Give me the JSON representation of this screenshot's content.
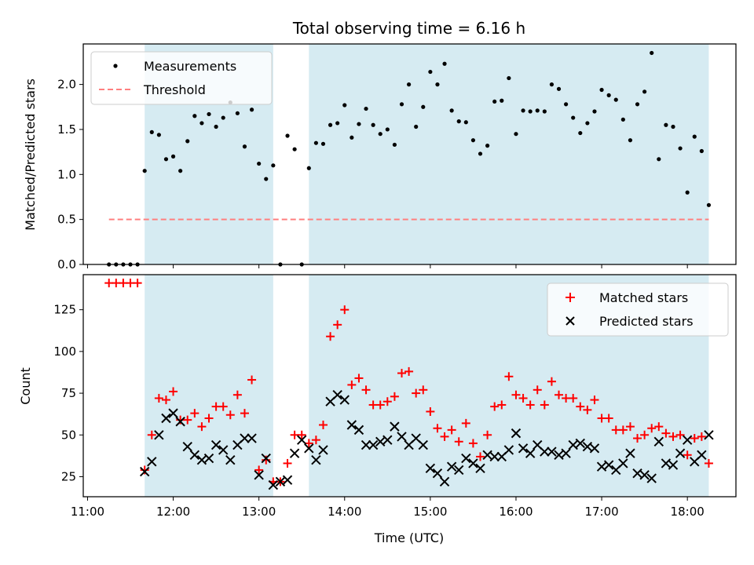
{
  "chart_data": [
    {
      "type": "scatter",
      "title": "Total observing time = 6.16 h",
      "xlabel": "",
      "ylabel": "Matched/Predicted stars",
      "xlim": [
        "10:57",
        "18:34"
      ],
      "ylim": [
        0,
        2.45
      ],
      "x_ticks": [
        "11:00",
        "12:00",
        "13:00",
        "14:00",
        "15:00",
        "16:00",
        "17:00",
        "18:00"
      ],
      "x_tick_labels_visible": false,
      "y_ticks": [
        0.0,
        0.5,
        1.0,
        1.5,
        2.0
      ],
      "y_tick_labels": [
        "0.0",
        "0.5",
        "1.0",
        "1.5",
        "2.0"
      ],
      "grid": false,
      "legend_position": "upper left",
      "shaded_spans": [
        [
          "11:40",
          "13:10"
        ],
        [
          "13:35",
          "18:15"
        ]
      ],
      "threshold": {
        "name": "Threshold",
        "y": 0.5,
        "x_start": "11:15",
        "x_end": "18:15",
        "color": "#ff7f7f",
        "style": "dashed"
      },
      "series": [
        {
          "name": "Measurements",
          "color": "#000000",
          "marker": "dot",
          "points": [
            [
              "11:15",
              0
            ],
            [
              "11:20",
              0
            ],
            [
              "11:25",
              0
            ],
            [
              "11:30",
              0
            ],
            [
              "11:35",
              0
            ],
            [
              "11:40",
              1.04
            ],
            [
              "11:45",
              1.47
            ],
            [
              "11:50",
              1.44
            ],
            [
              "11:55",
              1.17
            ],
            [
              "12:00",
              1.2
            ],
            [
              "12:05",
              1.04
            ],
            [
              "12:10",
              1.37
            ],
            [
              "12:15",
              1.65
            ],
            [
              "12:20",
              1.57
            ],
            [
              "12:25",
              1.67
            ],
            [
              "12:30",
              1.53
            ],
            [
              "12:35",
              1.63
            ],
            [
              "12:40",
              1.8
            ],
            [
              "12:45",
              1.68
            ],
            [
              "12:50",
              1.31
            ],
            [
              "12:55",
              1.72
            ],
            [
              "13:00",
              1.12
            ],
            [
              "13:05",
              0.95
            ],
            [
              "13:10",
              1.1
            ],
            [
              "13:15",
              0
            ],
            [
              "13:20",
              1.43
            ],
            [
              "13:25",
              1.28
            ],
            [
              "13:30",
              0
            ],
            [
              "13:35",
              1.07
            ],
            [
              "13:40",
              1.35
            ],
            [
              "13:45",
              1.34
            ],
            [
              "13:50",
              1.55
            ],
            [
              "13:55",
              1.57
            ],
            [
              "14:00",
              1.77
            ],
            [
              "14:05",
              1.41
            ],
            [
              "14:10",
              1.56
            ],
            [
              "14:15",
              1.73
            ],
            [
              "14:20",
              1.55
            ],
            [
              "14:25",
              1.45
            ],
            [
              "14:30",
              1.5
            ],
            [
              "14:35",
              1.33
            ],
            [
              "14:40",
              1.78
            ],
            [
              "14:45",
              2.0
            ],
            [
              "14:50",
              1.53
            ],
            [
              "14:55",
              1.75
            ],
            [
              "15:00",
              2.14
            ],
            [
              "15:05",
              2.0
            ],
            [
              "15:10",
              2.23
            ],
            [
              "15:15",
              1.71
            ],
            [
              "15:20",
              1.59
            ],
            [
              "15:25",
              1.58
            ],
            [
              "15:30",
              1.38
            ],
            [
              "15:35",
              1.23
            ],
            [
              "15:40",
              1.32
            ],
            [
              "15:45",
              1.81
            ],
            [
              "15:50",
              1.82
            ],
            [
              "15:55",
              2.07
            ],
            [
              "16:00",
              1.45
            ],
            [
              "16:05",
              1.71
            ],
            [
              "16:10",
              1.7
            ],
            [
              "16:15",
              1.71
            ],
            [
              "16:20",
              1.7
            ],
            [
              "16:25",
              2.0
            ],
            [
              "16:30",
              1.95
            ],
            [
              "16:35",
              1.78
            ],
            [
              "16:40",
              1.63
            ],
            [
              "16:45",
              1.46
            ],
            [
              "16:50",
              1.57
            ],
            [
              "16:55",
              1.7
            ],
            [
              "17:00",
              1.94
            ],
            [
              "17:05",
              1.88
            ],
            [
              "17:10",
              1.83
            ],
            [
              "17:15",
              1.61
            ],
            [
              "17:20",
              1.38
            ],
            [
              "17:25",
              1.78
            ],
            [
              "17:30",
              1.92
            ],
            [
              "17:35",
              2.35
            ],
            [
              "17:40",
              1.17
            ],
            [
              "17:45",
              1.55
            ],
            [
              "17:50",
              1.53
            ],
            [
              "17:55",
              1.29
            ],
            [
              "18:00",
              0.8
            ],
            [
              "18:05",
              1.42
            ],
            [
              "18:10",
              1.26
            ],
            [
              "18:15",
              0.66
            ]
          ]
        }
      ]
    },
    {
      "type": "scatter",
      "title": "",
      "xlabel": "Time (UTC)",
      "ylabel": "Count",
      "xlim": [
        "10:57",
        "18:34"
      ],
      "ylim": [
        13,
        146
      ],
      "x_ticks": [
        "11:00",
        "12:00",
        "13:00",
        "14:00",
        "15:00",
        "16:00",
        "17:00",
        "18:00"
      ],
      "x_tick_labels": [
        "11:00",
        "12:00",
        "13:00",
        "14:00",
        "15:00",
        "16:00",
        "17:00",
        "18:00"
      ],
      "y_ticks": [
        25,
        50,
        75,
        100,
        125
      ],
      "y_tick_labels": [
        "25",
        "50",
        "75",
        "100",
        "125"
      ],
      "grid": false,
      "legend_position": "upper right",
      "shaded_spans": [
        [
          "11:40",
          "13:10"
        ],
        [
          "13:35",
          "18:15"
        ]
      ],
      "series": [
        {
          "name": "Matched stars",
          "color": "#ff0000",
          "marker": "plus",
          "points": [
            [
              "11:15",
              141
            ],
            [
              "11:20",
              141
            ],
            [
              "11:25",
              141
            ],
            [
              "11:30",
              141
            ],
            [
              "11:35",
              141
            ],
            [
              "11:40",
              29
            ],
            [
              "11:45",
              50
            ],
            [
              "11:50",
              72
            ],
            [
              "11:55",
              71
            ],
            [
              "12:00",
              76
            ],
            [
              "12:05",
              59
            ],
            [
              "12:10",
              59
            ],
            [
              "12:15",
              63
            ],
            [
              "12:20",
              55
            ],
            [
              "12:25",
              60
            ],
            [
              "12:30",
              67
            ],
            [
              "12:35",
              67
            ],
            [
              "12:40",
              62
            ],
            [
              "12:45",
              74
            ],
            [
              "12:50",
              63
            ],
            [
              "12:55",
              83
            ],
            [
              "13:00",
              29
            ],
            [
              "13:05",
              35
            ],
            [
              "13:10",
              22
            ],
            [
              "13:15",
              22
            ],
            [
              "13:20",
              33
            ],
            [
              "13:25",
              50
            ],
            [
              "13:30",
              50
            ],
            [
              "13:35",
              45
            ],
            [
              "13:40",
              47
            ],
            [
              "13:45",
              56
            ],
            [
              "13:50",
              109
            ],
            [
              "13:55",
              116
            ],
            [
              "14:00",
              125
            ],
            [
              "14:05",
              80
            ],
            [
              "14:10",
              84
            ],
            [
              "14:15",
              77
            ],
            [
              "14:20",
              68
            ],
            [
              "14:25",
              68
            ],
            [
              "14:30",
              70
            ],
            [
              "14:35",
              73
            ],
            [
              "14:40",
              87
            ],
            [
              "14:45",
              88
            ],
            [
              "14:50",
              75
            ],
            [
              "14:55",
              77
            ],
            [
              "15:00",
              64
            ],
            [
              "15:05",
              54
            ],
            [
              "15:10",
              49
            ],
            [
              "15:15",
              53
            ],
            [
              "15:20",
              46
            ],
            [
              "15:25",
              57
            ],
            [
              "15:30",
              45
            ],
            [
              "15:35",
              37
            ],
            [
              "15:40",
              50
            ],
            [
              "15:45",
              67
            ],
            [
              "15:50",
              68
            ],
            [
              "15:55",
              85
            ],
            [
              "16:00",
              74
            ],
            [
              "16:05",
              72
            ],
            [
              "16:10",
              68
            ],
            [
              "16:15",
              77
            ],
            [
              "16:20",
              68
            ],
            [
              "16:25",
              82
            ],
            [
              "16:30",
              74
            ],
            [
              "16:35",
              72
            ],
            [
              "16:40",
              72
            ],
            [
              "16:45",
              67
            ],
            [
              "16:50",
              65
            ],
            [
              "16:55",
              71
            ],
            [
              "17:00",
              60
            ],
            [
              "17:05",
              60
            ],
            [
              "17:10",
              53
            ],
            [
              "17:15",
              53
            ],
            [
              "17:20",
              55
            ],
            [
              "17:25",
              48
            ],
            [
              "17:30",
              50
            ],
            [
              "17:35",
              54
            ],
            [
              "17:40",
              55
            ],
            [
              "17:45",
              51
            ],
            [
              "17:50",
              49
            ],
            [
              "17:55",
              50
            ],
            [
              "18:00",
              38
            ],
            [
              "18:05",
              48
            ],
            [
              "18:10",
              49
            ],
            [
              "18:15",
              33
            ]
          ]
        },
        {
          "name": "Predicted stars",
          "color": "#000000",
          "marker": "x",
          "points": [
            [
              "11:40",
              28
            ],
            [
              "11:45",
              34
            ],
            [
              "11:50",
              50
            ],
            [
              "11:55",
              60
            ],
            [
              "12:00",
              63
            ],
            [
              "12:05",
              58
            ],
            [
              "12:10",
              43
            ],
            [
              "12:15",
              38
            ],
            [
              "12:20",
              35
            ],
            [
              "12:25",
              36
            ],
            [
              "12:30",
              44
            ],
            [
              "12:35",
              41
            ],
            [
              "12:40",
              35
            ],
            [
              "12:45",
              44
            ],
            [
              "12:50",
              48
            ],
            [
              "12:55",
              48
            ],
            [
              "13:00",
              26
            ],
            [
              "13:05",
              36
            ],
            [
              "13:10",
              20
            ],
            [
              "13:15",
              22
            ],
            [
              "13:20",
              23
            ],
            [
              "13:25",
              39
            ],
            [
              "13:30",
              47
            ],
            [
              "13:35",
              42
            ],
            [
              "13:40",
              35
            ],
            [
              "13:45",
              41
            ],
            [
              "13:50",
              70
            ],
            [
              "13:55",
              74
            ],
            [
              "14:00",
              71
            ],
            [
              "14:05",
              56
            ],
            [
              "14:10",
              53
            ],
            [
              "14:15",
              44
            ],
            [
              "14:20",
              44
            ],
            [
              "14:25",
              46
            ],
            [
              "14:30",
              47
            ],
            [
              "14:35",
              55
            ],
            [
              "14:40",
              49
            ],
            [
              "14:45",
              44
            ],
            [
              "14:50",
              48
            ],
            [
              "14:55",
              44
            ],
            [
              "15:00",
              30
            ],
            [
              "15:05",
              27
            ],
            [
              "15:10",
              22
            ],
            [
              "15:15",
              31
            ],
            [
              "15:20",
              29
            ],
            [
              "15:25",
              36
            ],
            [
              "15:30",
              33
            ],
            [
              "15:35",
              30
            ],
            [
              "15:40",
              38
            ],
            [
              "15:45",
              37
            ],
            [
              "15:50",
              37
            ],
            [
              "15:55",
              41
            ],
            [
              "16:00",
              51
            ],
            [
              "16:05",
              42
            ],
            [
              "16:10",
              39
            ],
            [
              "16:15",
              44
            ],
            [
              "16:20",
              40
            ],
            [
              "16:25",
              40
            ],
            [
              "16:30",
              38
            ],
            [
              "16:35",
              39
            ],
            [
              "16:40",
              44
            ],
            [
              "16:45",
              45
            ],
            [
              "16:50",
              43
            ],
            [
              "16:55",
              42
            ],
            [
              "17:00",
              31
            ],
            [
              "17:05",
              32
            ],
            [
              "17:10",
              29
            ],
            [
              "17:15",
              33
            ],
            [
              "17:20",
              39
            ],
            [
              "17:25",
              27
            ],
            [
              "17:30",
              26
            ],
            [
              "17:35",
              24
            ],
            [
              "17:40",
              46
            ],
            [
              "17:45",
              33
            ],
            [
              "17:50",
              32
            ],
            [
              "17:55",
              39
            ],
            [
              "18:00",
              47
            ],
            [
              "18:05",
              34
            ],
            [
              "18:10",
              38
            ],
            [
              "18:15",
              50
            ]
          ]
        }
      ]
    }
  ]
}
